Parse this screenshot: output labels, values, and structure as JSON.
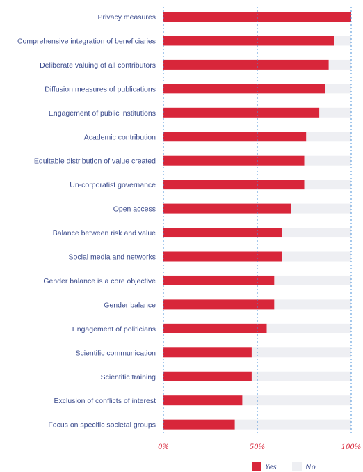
{
  "chart_data": {
    "type": "bar",
    "orientation": "horizontal",
    "stacked": true,
    "categories": [
      "Privacy measures",
      "Comprehensive integration of beneficiaries",
      "Deliberate valuing of all contributors",
      "Diffusion measures of publications",
      "Engagement of public institutions",
      "Academic contribution",
      "Equitable distribution of value created",
      "Un-corporatist governance",
      "Open access",
      "Balance between risk and value",
      "Social media and networks",
      "Gender balance is a core objective",
      "Gender balance",
      "Engagement of politicians",
      "Scientific communication",
      "Scientific training",
      "Exclusion of conflicts of interest",
      "Focus on specific societal groups"
    ],
    "series": [
      {
        "name": "Yes",
        "color": "#d8263a",
        "values": [
          100,
          91,
          88,
          86,
          83,
          76,
          75,
          75,
          68,
          63,
          63,
          59,
          59,
          55,
          47,
          47,
          42,
          38
        ]
      },
      {
        "name": "No",
        "color": "#eeeff3",
        "values": [
          0,
          9,
          12,
          14,
          17,
          24,
          25,
          25,
          32,
          37,
          37,
          41,
          41,
          45,
          53,
          53,
          58,
          62
        ]
      }
    ],
    "xlim": [
      0,
      100
    ],
    "x_ticks": [
      "0%",
      "50%",
      "100%"
    ],
    "x_tick_values": [
      0,
      50,
      100
    ],
    "gridlines": "dotted at tick values",
    "legend_position": "bottom-right"
  }
}
